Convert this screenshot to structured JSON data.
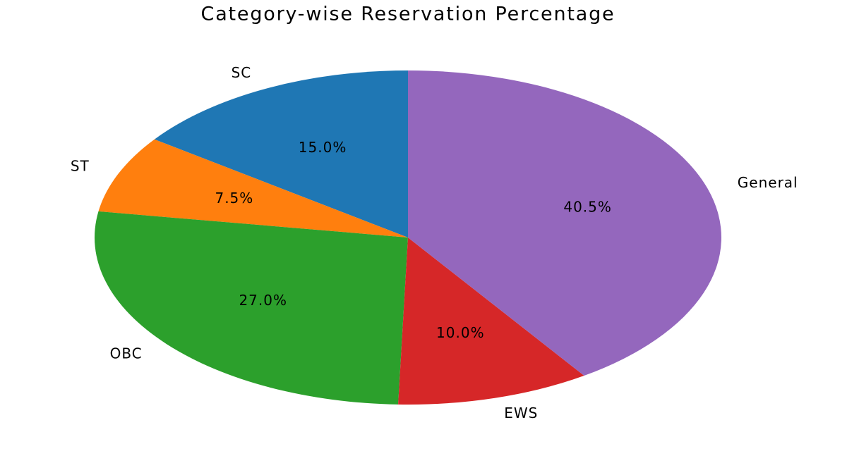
{
  "chart_data": {
    "type": "pie",
    "title": "Category-wise Reservation Percentage",
    "categories": [
      "SC",
      "ST",
      "OBC",
      "EWS",
      "General"
    ],
    "values": [
      15,
      7.5,
      27,
      10,
      40.5
    ],
    "value_labels": [
      "15.0%",
      "7.5%",
      "27.0%",
      "10.0%",
      "40.5%"
    ],
    "colors": [
      "#1f77b4",
      "#ff7f0e",
      "#2ca02c",
      "#d62728",
      "#9467bd"
    ]
  }
}
